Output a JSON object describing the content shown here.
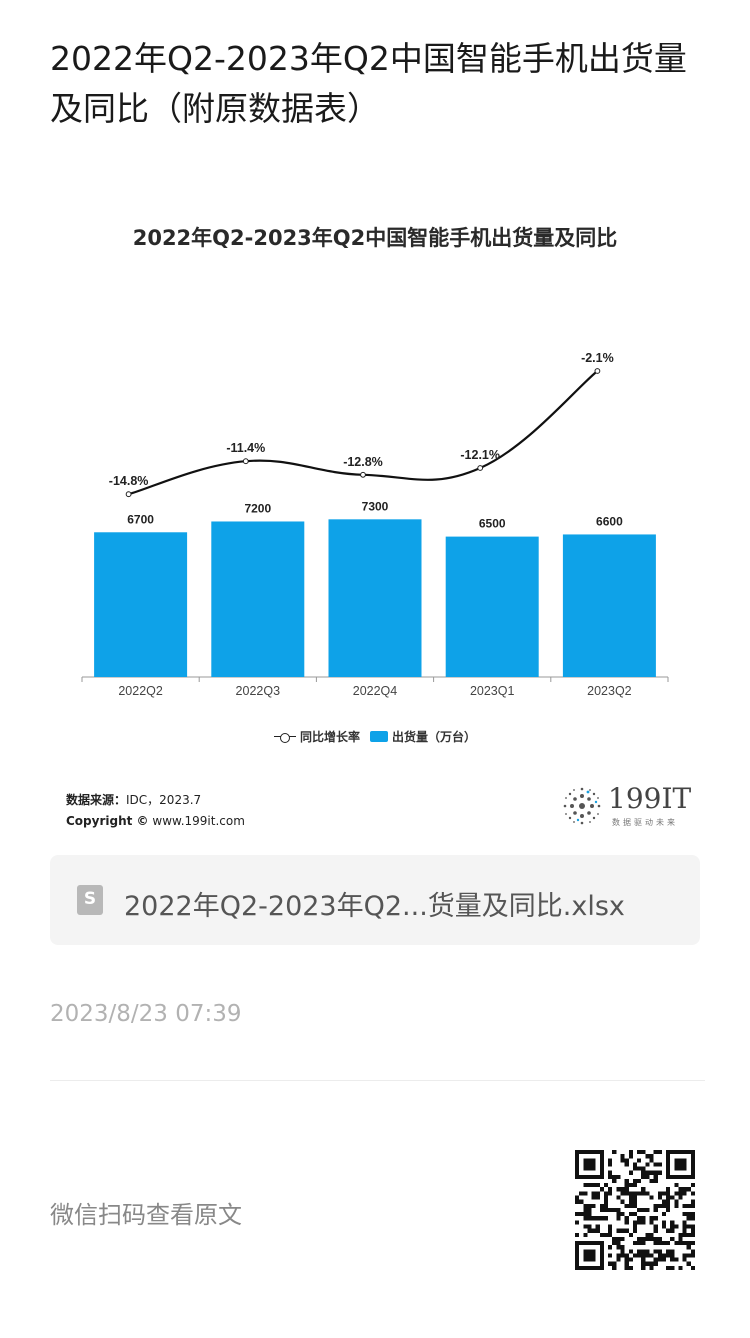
{
  "page": {
    "title": "2022年Q2-2023年Q2中国智能手机出货量及同比（附原数据表）"
  },
  "chart": {
    "title": "2022年Q2-2023年Q2中国智能手机出货量及同比",
    "legend_line": "同比增长率",
    "legend_bar": "出货量（万台）",
    "source_label": "数据来源：",
    "source_value": "IDC，2023.7",
    "copyright_label": "Copyright ©",
    "copyright_value": "www.199it.com",
    "logo_text": "199IT",
    "logo_sub": "数据驱动未来"
  },
  "chart_data": {
    "type": "bar",
    "categories": [
      "2022Q2",
      "2022Q3",
      "2022Q4",
      "2023Q1",
      "2023Q2"
    ],
    "series": [
      {
        "name": "出货量（万台）",
        "type": "bar",
        "values": [
          6700,
          7200,
          7300,
          6500,
          6600
        ],
        "labels": [
          "6700",
          "7200",
          "7300",
          "6500",
          "6600"
        ]
      },
      {
        "name": "同比增长率",
        "type": "line",
        "values": [
          -14.8,
          -11.4,
          -12.8,
          -12.1,
          -2.1
        ],
        "labels": [
          "-14.8%",
          "-11.4%",
          "-12.8%",
          "-12.1%",
          "-2.1%"
        ]
      }
    ],
    "title": "2022年Q2-2023年Q2中国智能手机出货量及同比",
    "colors": {
      "bar": "#0ea2e8",
      "line": "#111111"
    },
    "legend": "bottom-center",
    "grid": false
  },
  "attachment": {
    "icon": "spreadsheet-icon",
    "icon_glyph": "S",
    "file_name": "2022年Q2-2023年Q2...货量及同比.xlsx"
  },
  "meta": {
    "timestamp": "2023/8/23 07:39",
    "scan_label": "微信扫码查看原文"
  }
}
